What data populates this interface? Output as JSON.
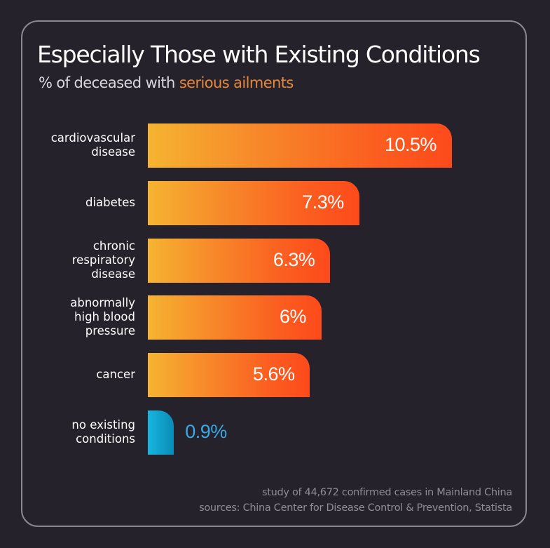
{
  "header": {
    "title": "Especially Those with Existing Conditions",
    "subtitle_prefix": "% of deceased with ",
    "subtitle_accent": "serious ailments"
  },
  "colors": {
    "background": "#25222b",
    "bar_gradient_start": "#f6b431",
    "bar_gradient_end": "#fd4a1b",
    "baseline_bar": "#17b6e0",
    "accent_text": "#e8873a",
    "baseline_label": "#3aa9e5"
  },
  "chart_data": {
    "type": "bar",
    "orientation": "horizontal",
    "title": "Especially Those with Existing Conditions",
    "subtitle": "% of deceased with serious ailments",
    "unit": "%",
    "categories": [
      "cardiovascular\ndisease",
      "diabetes",
      "chronic\nrespiratory\ndisease",
      "abnormally\nhigh blood\npressure",
      "cancer",
      "no existing\nconditions"
    ],
    "values": [
      10.5,
      7.3,
      6.3,
      6,
      5.6,
      0.9
    ],
    "value_labels": [
      "10.5%",
      "7.3%",
      "6.3%",
      "6%",
      "5.6%",
      "0.9%"
    ],
    "xlim": [
      0,
      10.5
    ],
    "grid": false,
    "legend": "none"
  },
  "footer": {
    "note": "study of 44,672 confirmed cases in Mainland China",
    "sources": "sources: China Center for Disease Control & Prevention, Statista"
  }
}
